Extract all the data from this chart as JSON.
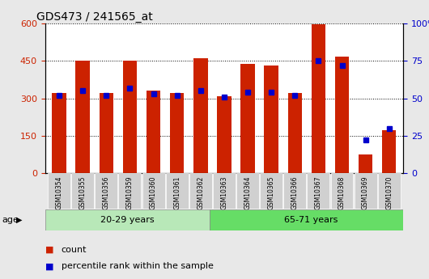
{
  "title": "GDS473 / 241565_at",
  "samples": [
    "GSM10354",
    "GSM10355",
    "GSM10356",
    "GSM10359",
    "GSM10360",
    "GSM10361",
    "GSM10362",
    "GSM10363",
    "GSM10364",
    "GSM10365",
    "GSM10366",
    "GSM10367",
    "GSM10368",
    "GSM10369",
    "GSM10370"
  ],
  "counts": [
    320,
    452,
    320,
    453,
    330,
    320,
    462,
    310,
    437,
    432,
    323,
    597,
    468,
    73,
    173
  ],
  "percentiles": [
    52,
    55,
    52,
    57,
    53,
    52,
    55,
    51,
    54,
    54,
    52,
    75,
    72,
    22,
    30
  ],
  "group1_label": "20-29 years",
  "group2_label": "65-71 years",
  "group1_count": 7,
  "group2_count": 8,
  "ylim_left": [
    0,
    600
  ],
  "ylim_right": [
    0,
    100
  ],
  "yticks_left": [
    0,
    150,
    300,
    450,
    600
  ],
  "yticks_right": [
    0,
    25,
    50,
    75,
    100
  ],
  "bar_color": "#cc2200",
  "pct_color": "#0000cc",
  "plot_bg": "#ffffff",
  "fig_bg": "#e8e8e8",
  "group_bg1": "#b8e8b8",
  "group_bg2": "#66dd66",
  "xtick_bg": "#d0d0d0",
  "age_label": "age",
  "legend_count": "count",
  "legend_pct": "percentile rank within the sample"
}
